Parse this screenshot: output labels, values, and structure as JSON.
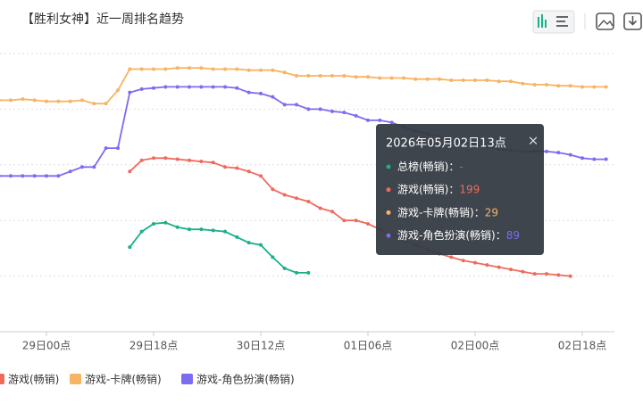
{
  "chart_data": {
    "type": "line",
    "title": "【胜利女神】近一周排名趋势",
    "categories": [
      null,
      null,
      null,
      null,
      "29日00点",
      null,
      null,
      null,
      null,
      null,
      null,
      null,
      null,
      "29日18点",
      null,
      null,
      null,
      null,
      null,
      null,
      null,
      null,
      "30日12点",
      null,
      null,
      null,
      null,
      null,
      null,
      null,
      null,
      "01日06点",
      null,
      null,
      null,
      null,
      null,
      null,
      null,
      null,
      "02日00点",
      null,
      null,
      null,
      null,
      null,
      null,
      null,
      null,
      "02日18点",
      null,
      null
    ],
    "ylim": [
      0,
      250
    ],
    "yticks": [
      0,
      50,
      100,
      150,
      200,
      250
    ],
    "y_inverted": true,
    "grid": true,
    "series": [
      {
        "name": "总榜(畅销)",
        "color": "#19b08a",
        "values": [
          null,
          null,
          null,
          null,
          null,
          null,
          null,
          null,
          null,
          null,
          null,
          174,
          160,
          153,
          152,
          156,
          158,
          158,
          159,
          160,
          165,
          170,
          172,
          183,
          193,
          197,
          197,
          null,
          null,
          null,
          null,
          null,
          null,
          null,
          null,
          null,
          null,
          null,
          null,
          null,
          null,
          null,
          null,
          null,
          null,
          null,
          null,
          null,
          null,
          null,
          null,
          null
        ]
      },
      {
        "name": "游戏(畅销)",
        "color": "#ee6b5c",
        "values": [
          null,
          null,
          null,
          null,
          null,
          null,
          null,
          null,
          null,
          null,
          null,
          106,
          96,
          94,
          94,
          95,
          96,
          97,
          98,
          102,
          103,
          106,
          110,
          122,
          127,
          130,
          133,
          139,
          142,
          150,
          150,
          153,
          158,
          163,
          168,
          172,
          176,
          180,
          183,
          186,
          188,
          190,
          192,
          194,
          196,
          198,
          198,
          199,
          200,
          null,
          null,
          null
        ]
      },
      {
        "name": "游戏-卡牌(畅销)",
        "color": "#f7b463",
        "values": [
          42,
          42,
          41,
          42,
          43,
          43,
          43,
          42,
          45,
          45,
          33,
          14,
          14,
          14,
          14,
          13,
          13,
          13,
          14,
          14,
          14,
          15,
          15,
          15,
          17,
          20,
          20,
          20,
          20,
          20,
          21,
          21,
          22,
          22,
          22,
          23,
          23,
          23,
          24,
          24,
          24,
          24,
          25,
          25,
          27,
          28,
          28,
          29,
          29,
          30,
          30,
          30
        ]
      },
      {
        "name": "游戏-角色扮演(畅销)",
        "color": "#7c6cf0",
        "values": [
          110,
          110,
          110,
          110,
          110,
          110,
          106,
          102,
          102,
          85,
          85,
          35,
          32,
          31,
          30,
          30,
          30,
          30,
          30,
          30,
          31,
          35,
          36,
          39,
          46,
          46,
          50,
          50,
          52,
          53,
          56,
          60,
          60,
          62,
          66,
          70,
          72,
          75,
          78,
          80,
          82,
          84,
          86,
          87,
          88,
          88,
          88,
          89,
          91,
          94,
          95,
          95
        ]
      }
    ],
    "legend_series": [
      1,
      2,
      3
    ],
    "tooltip": {
      "title": "2026年05月02日13点",
      "close": "×",
      "values": [
        "-",
        199,
        29,
        89
      ]
    }
  }
}
